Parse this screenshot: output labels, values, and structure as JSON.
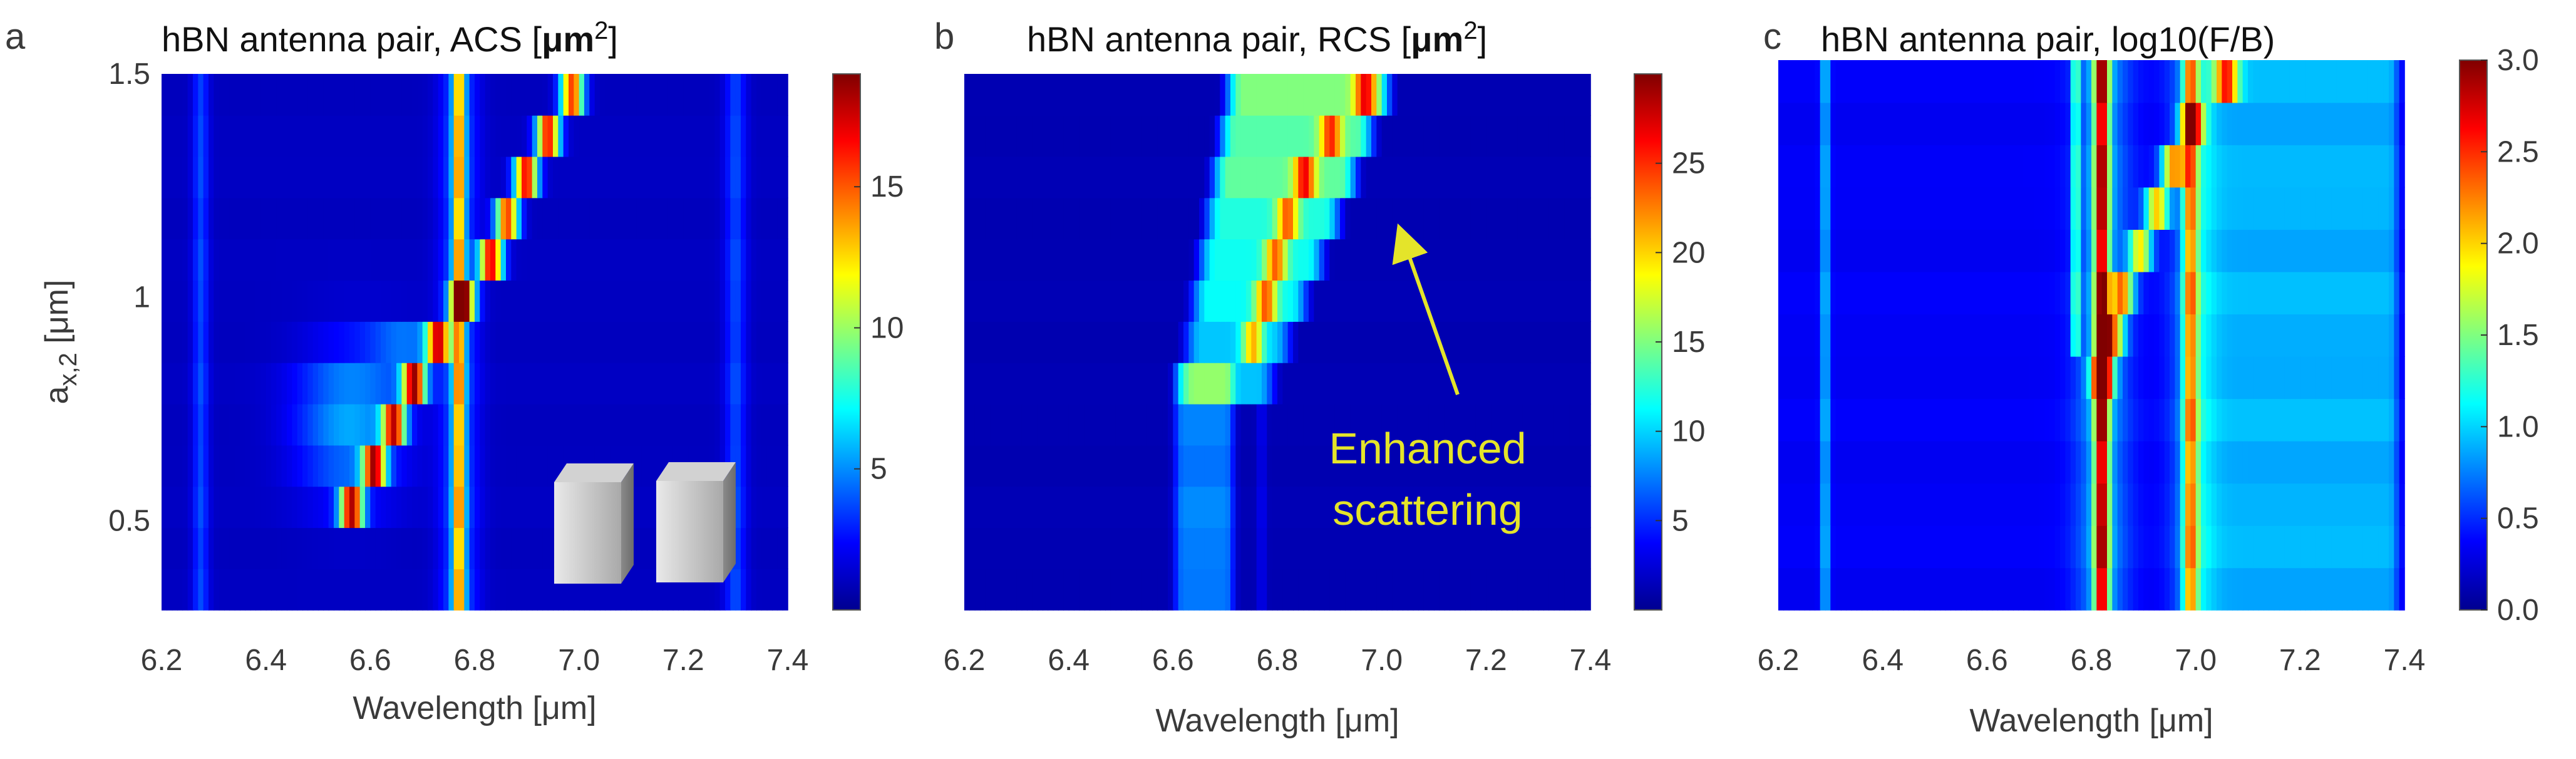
{
  "chart_data": [
    {
      "id": "a",
      "type": "heatmap",
      "panel_letter": "a",
      "title": "hBN antenna pair, ACS [",
      "title_unit": "μm",
      "title_sup": "2",
      "title_close": "]",
      "xlabel": "Wavelength [μm]",
      "ylabel": "a",
      "ylabel_sub": "x,2",
      "ylabel_unit": " [μm]",
      "xlim": [
        6.2,
        7.4
      ],
      "ylim": [
        0.3,
        1.5
      ],
      "xticks": [
        "6.2",
        "6.4",
        "6.6",
        "6.8",
        "7.0",
        "7.2",
        "7.4"
      ],
      "yticks": [
        {
          "v": 1.5,
          "label": "1.5"
        },
        {
          "v": 1.0,
          "label": "1"
        },
        {
          "v": 0.5,
          "label": "0.5"
        }
      ],
      "clim": [
        0,
        19
      ],
      "cticks": [
        {
          "v": 5,
          "label": "5"
        },
        {
          "v": 10,
          "label": "10"
        },
        {
          "v": 15,
          "label": "15"
        }
      ],
      "background": 1.2,
      "features": [
        {
          "kind": "vline",
          "x": 6.275,
          "w": 0.015,
          "amp": 2.5
        },
        {
          "kind": "vline",
          "x": 7.3,
          "w": 0.02,
          "amp": 2.5
        },
        {
          "kind": "vline",
          "x": 6.77,
          "w": 0.011,
          "amp": 11
        },
        {
          "kind": "vline",
          "x": 6.77,
          "w": 0.035,
          "amp": 3
        },
        {
          "kind": "path",
          "pts": [
            [
              6.55,
              0.5
            ],
            [
              6.62,
              0.65
            ],
            [
              6.67,
              0.78
            ],
            [
              6.73,
              0.9
            ],
            [
              6.77,
              0.98
            ],
            [
              6.83,
              1.08
            ],
            [
              6.87,
              1.2
            ],
            [
              6.92,
              1.32
            ],
            [
              7.0,
              1.48
            ]
          ],
          "w": 0.022,
          "amp": 15
        },
        {
          "kind": "blob",
          "x": 6.56,
          "y": 0.72,
          "sx": 0.1,
          "sy": 0.16,
          "amp": 4.5
        },
        {
          "kind": "blob",
          "x": 6.67,
          "y": 0.88,
          "sx": 0.07,
          "sy": 0.06,
          "amp": 3.5
        }
      ],
      "cubes_inset": true
    },
    {
      "id": "b",
      "type": "heatmap",
      "panel_letter": "b",
      "title": "hBN antenna pair, RCS [",
      "title_unit": "μm",
      "title_sup": "2",
      "title_close": "]",
      "xlabel": "Wavelength [μm]",
      "xlim": [
        6.2,
        7.4
      ],
      "ylim": [
        0.3,
        1.5
      ],
      "xticks": [
        "6.2",
        "6.4",
        "6.6",
        "6.8",
        "7.0",
        "7.2",
        "7.4"
      ],
      "clim": [
        0,
        30
      ],
      "cticks": [
        {
          "v": 5,
          "label": "5"
        },
        {
          "v": 10,
          "label": "10"
        },
        {
          "v": 15,
          "label": "15"
        },
        {
          "v": 20,
          "label": "20"
        },
        {
          "v": 25,
          "label": "25"
        }
      ],
      "background": 1.5,
      "features": [
        {
          "kind": "band",
          "x0": 6.62,
          "x1": 6.7,
          "y0": 0.3,
          "y1": 0.85,
          "edge": 0.03,
          "amp": 6
        },
        {
          "kind": "vline",
          "x": 6.77,
          "w": 0.008,
          "amp": 2,
          "y0": 0.3,
          "y1": 0.8
        },
        {
          "kind": "wedge",
          "yb": 0.8,
          "yt": 1.5,
          "xl0": 6.62,
          "xl1": 6.72,
          "xr0": 6.78,
          "xr1": 7.02,
          "amp": 14
        },
        {
          "kind": "path",
          "pts": [
            [
              6.74,
              0.85
            ],
            [
              6.78,
              1.0
            ],
            [
              6.8,
              1.1
            ],
            [
              6.83,
              1.22
            ],
            [
              6.88,
              1.33
            ],
            [
              6.98,
              1.47
            ]
          ],
          "w": 0.02,
          "amp": 12
        }
      ],
      "annotation": {
        "text_line1": "Enhanced",
        "text_line2": "scattering",
        "color": "#e4e42a"
      }
    },
    {
      "id": "c",
      "type": "heatmap",
      "panel_letter": "c",
      "title": "hBN antenna pair, log10(F/B)",
      "xlabel": "Wavelength [μm]",
      "xlim": [
        6.2,
        7.4
      ],
      "ylim": [
        0.3,
        1.5
      ],
      "xticks": [
        "6.2",
        "6.4",
        "6.6",
        "6.8",
        "7.0",
        "7.2",
        "7.4"
      ],
      "clim": [
        0,
        3
      ],
      "cticks": [
        {
          "v": 0.0,
          "label": "0.0"
        },
        {
          "v": 0.5,
          "label": "0.5"
        },
        {
          "v": 1.0,
          "label": "1.0"
        },
        {
          "v": 1.5,
          "label": "1.5"
        },
        {
          "v": 2.0,
          "label": "2.0"
        },
        {
          "v": 2.5,
          "label": "2.5"
        },
        {
          "v": 3.0,
          "label": "3.0"
        }
      ],
      "background": 0.35,
      "features": [
        {
          "kind": "vline",
          "x": 6.29,
          "w": 0.008,
          "amp": 0.7
        },
        {
          "kind": "region",
          "x0": 7.0,
          "x1": 7.4,
          "amp": 0.55
        },
        {
          "kind": "vline",
          "x": 6.82,
          "w": 0.014,
          "amp": 2.2
        },
        {
          "kind": "vline",
          "x": 6.82,
          "w": 0.05,
          "amp": 0.5
        },
        {
          "kind": "vline",
          "x": 6.99,
          "w": 0.014,
          "amp": 1.4
        },
        {
          "kind": "vline",
          "x": 6.99,
          "w": 0.04,
          "amp": 0.4
        },
        {
          "kind": "vline",
          "x": 6.77,
          "w": 0.006,
          "amp": 1.3,
          "y0": 0.85,
          "y1": 1.5
        },
        {
          "kind": "path",
          "pts": [
            [
              6.82,
              0.8
            ],
            [
              6.86,
              1.0
            ],
            [
              6.9,
              1.1
            ],
            [
              6.95,
              1.25
            ],
            [
              7.0,
              1.38
            ],
            [
              7.08,
              1.48
            ]
          ],
          "w": 0.022,
          "amp": 1.6
        }
      ]
    }
  ]
}
